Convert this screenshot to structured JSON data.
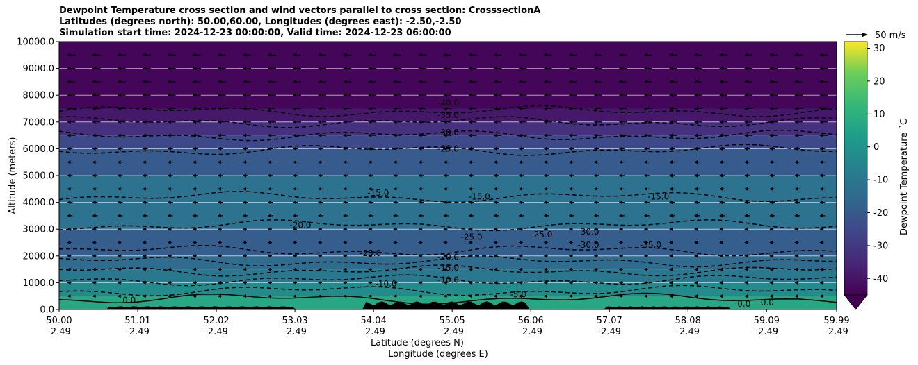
{
  "title_lines": [
    "Dewpoint Temperature cross section and wind vectors parallel to cross section: CrosssectionA",
    "Latitudes (degrees north): 50.00,60.00, Longitudes (degrees east): -2.50,-2.50",
    "Simulation start time: 2024-12-23 00:00:00, Valid time: 2024-12-23 06:00:00"
  ],
  "chart_data": {
    "type": "heatmap",
    "ylabel": "Altitude (meters)",
    "xlabel_lines": [
      "Latitude (degrees N)",
      "Longitude (degrees E)"
    ],
    "ylim": [
      0,
      10000
    ],
    "xlim": [
      50.0,
      59.99
    ],
    "y_ticks": [
      "0.0",
      "1000.0",
      "2000.0",
      "3000.0",
      "4000.0",
      "5000.0",
      "6000.0",
      "7000.0",
      "8000.0",
      "9000.0",
      "10000.0"
    ],
    "x_ticks": [
      {
        "lat": "50.00",
        "lon": "-2.49"
      },
      {
        "lat": "51.01",
        "lon": "-2.49"
      },
      {
        "lat": "52.02",
        "lon": "-2.49"
      },
      {
        "lat": "53.03",
        "lon": "-2.49"
      },
      {
        "lat": "54.04",
        "lon": "-2.49"
      },
      {
        "lat": "55.05",
        "lon": "-2.49"
      },
      {
        "lat": "56.06",
        "lon": "-2.49"
      },
      {
        "lat": "57.07",
        "lon": "-2.49"
      },
      {
        "lat": "58.08",
        "lon": "-2.49"
      },
      {
        "lat": "59.09",
        "lon": "-2.49"
      },
      {
        "lat": "59.99",
        "lon": "-2.49"
      }
    ],
    "grid": "horizontal",
    "colorbar": {
      "label": "Dewpoint Temperature $^\\circ$C",
      "label_display": "Dewpoint Temperature ˚C",
      "ticks": [
        "-40",
        "-30",
        "-20",
        "-10",
        "0",
        "10",
        "20",
        "30"
      ],
      "range": [
        -45,
        32
      ],
      "extend": "min",
      "colormap": "viridis"
    },
    "quiver_key": {
      "label": "50 m/s",
      "value": 50
    },
    "bands": [
      {
        "alt": 500,
        "value": 1
      },
      {
        "alt": 1000,
        "value": -8
      },
      {
        "alt": 1500,
        "value": -14
      },
      {
        "alt": 2000,
        "value": -18
      },
      {
        "alt": 3000,
        "value": -22
      },
      {
        "alt": 4000,
        "value": -16
      },
      {
        "alt": 5000,
        "value": -16
      },
      {
        "alt": 6000,
        "value": -23
      },
      {
        "alt": 6500,
        "value": -28
      },
      {
        "alt": 7000,
        "value": -34
      },
      {
        "alt": 7500,
        "value": -40
      },
      {
        "alt": 10000,
        "value": -44
      }
    ],
    "contours": [
      {
        "level": -40,
        "alt": 7400
      },
      {
        "level": -35,
        "alt": 7000
      },
      {
        "level": -30,
        "alt": 6500
      },
      {
        "level": -25,
        "alt": 5950
      },
      {
        "level": -20,
        "alt": 3150
      },
      {
        "level": -15,
        "alt": 4200
      },
      {
        "level": -25,
        "alt": 2200
      },
      {
        "level": -20,
        "alt": 1800
      },
      {
        "level": -15,
        "alt": 1450
      },
      {
        "level": -10,
        "alt": 1100
      },
      {
        "level": -5,
        "alt": 700
      },
      {
        "level": 0,
        "alt": 400
      }
    ],
    "contour_labels": [
      {
        "text": "-40.0",
        "lat": 55.0,
        "alt": 7600
      },
      {
        "text": "-35.0",
        "lat": 55.0,
        "alt": 7150
      },
      {
        "text": "-30.0",
        "lat": 55.0,
        "alt": 6500
      },
      {
        "text": "-25.0",
        "lat": 55.0,
        "alt": 5900
      },
      {
        "text": "-15.0",
        "lat": 54.1,
        "alt": 4250
      },
      {
        "text": "-15.0",
        "lat": 55.4,
        "alt": 4100
      },
      {
        "text": "-15.0",
        "lat": 57.7,
        "alt": 4100
      },
      {
        "text": "-20.0",
        "lat": 53.1,
        "alt": 3050
      },
      {
        "text": "-25.0",
        "lat": 54.0,
        "alt": 2000
      },
      {
        "text": "-25.0",
        "lat": 55.3,
        "alt": 2600
      },
      {
        "text": "-25.0",
        "lat": 56.2,
        "alt": 2700
      },
      {
        "text": "-30.0",
        "lat": 56.8,
        "alt": 2800
      },
      {
        "text": "-30.0",
        "lat": 56.8,
        "alt": 2300
      },
      {
        "text": "-35.0",
        "lat": 57.6,
        "alt": 2300
      },
      {
        "text": "-20.0",
        "lat": 55.0,
        "alt": 1850
      },
      {
        "text": "-15.0",
        "lat": 55.0,
        "alt": 1450
      },
      {
        "text": "-10.0",
        "lat": 54.2,
        "alt": 850
      },
      {
        "text": "-10.0",
        "lat": 55.0,
        "alt": 1000
      },
      {
        "text": "-5.0",
        "lat": 55.9,
        "alt": 450
      },
      {
        "text": "0.0",
        "lat": 50.9,
        "alt": 250
      },
      {
        "text": "0.0",
        "lat": 58.8,
        "alt": 100
      },
      {
        "text": "0.0",
        "lat": 59.1,
        "alt": 150
      }
    ]
  }
}
